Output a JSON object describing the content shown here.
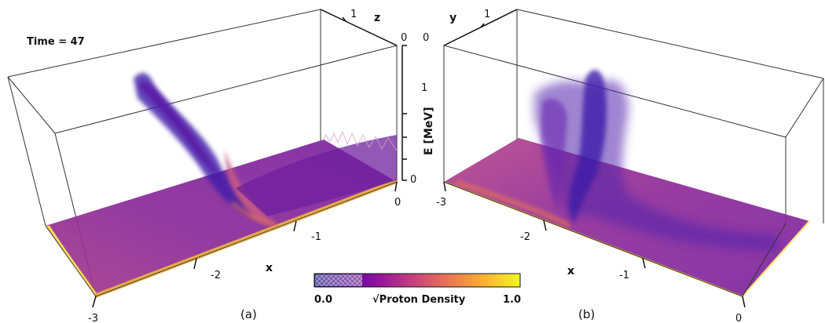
{
  "time_label": "Time = 47",
  "panels": {
    "a": {
      "label": "(a)",
      "x_axis": {
        "name": "x",
        "ticks": [
          "-3",
          "-2",
          "-1",
          "0"
        ]
      },
      "z_axis": {
        "name": "z",
        "ticks": [
          "1",
          "0"
        ]
      }
    },
    "b": {
      "label": "(b)",
      "x_axis": {
        "name": "x",
        "ticks": [
          "-3",
          "-2",
          "-1",
          "0"
        ]
      },
      "y_axis": {
        "name": "y",
        "ticks": [
          "1",
          "0"
        ]
      }
    }
  },
  "energy_axis": {
    "name": "E [MeV]",
    "ticks": [
      "0",
      "1",
      "0"
    ]
  },
  "colorbar": {
    "title": "√Proton Density",
    "min": "0.0",
    "max": "1.0",
    "colors": [
      "#0d0887",
      "#5b02a3",
      "#9a179b",
      "#cb4678",
      "#eb7852",
      "#fbb32f",
      "#f0f921"
    ]
  }
}
